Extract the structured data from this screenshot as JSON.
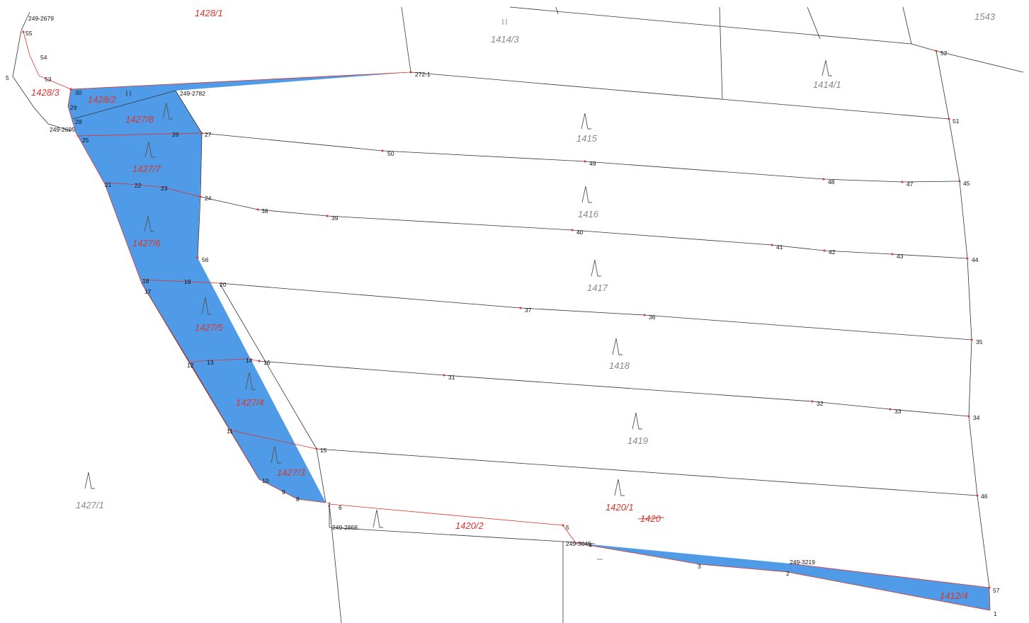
{
  "colors": {
    "highlight_fill": "#4f9be8",
    "boundary_red": "#e0312a",
    "parcel_label_red": "#d8362e",
    "parcel_label_gray": "#8a8a8a",
    "black_line": "#333333",
    "point_marker": "#e0312a"
  },
  "icons": {
    "land_use_symbol": "arable-land-icon",
    "building_symbol": "building-icon"
  },
  "parcels": [
    {
      "id": "p-1428-1",
      "label": "1428/1",
      "color": "red"
    },
    {
      "id": "p-1414-3",
      "label": "1414/3",
      "color": "gray"
    },
    {
      "id": "p-1543",
      "label": "1543",
      "color": "gray"
    },
    {
      "id": "p-1414-1",
      "label": "1414/1",
      "color": "gray"
    },
    {
      "id": "p-1428-3",
      "label": "1428/3",
      "color": "red"
    },
    {
      "id": "p-1428-2",
      "label": "1428/2",
      "color": "red"
    },
    {
      "id": "p-1427-8",
      "label": "1427/8",
      "color": "red"
    },
    {
      "id": "p-1415",
      "label": "1415",
      "color": "gray"
    },
    {
      "id": "p-1427-7",
      "label": "1427/7",
      "color": "red"
    },
    {
      "id": "p-1416",
      "label": "1416",
      "color": "gray"
    },
    {
      "id": "p-1427-6",
      "label": "1427/6",
      "color": "red"
    },
    {
      "id": "p-1417",
      "label": "1417",
      "color": "gray"
    },
    {
      "id": "p-1427-5",
      "label": "1427/5",
      "color": "red"
    },
    {
      "id": "p-1418",
      "label": "1418",
      "color": "gray"
    },
    {
      "id": "p-1427-4",
      "label": "1427/4",
      "color": "red"
    },
    {
      "id": "p-1419",
      "label": "1419",
      "color": "gray"
    },
    {
      "id": "p-1427-3",
      "label": "1427/3",
      "color": "red"
    },
    {
      "id": "p-1427-1",
      "label": "1427/1",
      "color": "gray"
    },
    {
      "id": "p-1420-1",
      "label": "1420/1",
      "color": "red"
    },
    {
      "id": "p-1420",
      "label": "1420",
      "color": "red",
      "struck": true
    },
    {
      "id": "p-1420-2",
      "label": "1420/2",
      "color": "red"
    },
    {
      "id": "p-1412-4",
      "label": "1412/4",
      "color": "red"
    }
  ],
  "points": [
    {
      "id": "pt-249-2679",
      "label": "249-2679"
    },
    {
      "id": "pt-55",
      "label": "55"
    },
    {
      "id": "pt-54",
      "label": "54"
    },
    {
      "id": "pt-5w",
      "label": "5"
    },
    {
      "id": "pt-53",
      "label": "53"
    },
    {
      "id": "pt-30",
      "label": "30"
    },
    {
      "id": "pt-29",
      "label": "29"
    },
    {
      "id": "pt-28",
      "label": "28"
    },
    {
      "id": "pt-249-2695",
      "label": "249-2695"
    },
    {
      "id": "pt-25",
      "label": "25"
    },
    {
      "id": "pt-249-2782",
      "label": "249-2782"
    },
    {
      "id": "pt-272-1",
      "label": "272-1"
    },
    {
      "id": "pt-26",
      "label": "26"
    },
    {
      "id": "pt-27",
      "label": "27"
    },
    {
      "id": "pt-50",
      "label": "50"
    },
    {
      "id": "pt-49",
      "label": "49"
    },
    {
      "id": "pt-48",
      "label": "48"
    },
    {
      "id": "pt-47",
      "label": "47"
    },
    {
      "id": "pt-45",
      "label": "45"
    },
    {
      "id": "pt-52",
      "label": "52"
    },
    {
      "id": "pt-51",
      "label": "51"
    },
    {
      "id": "pt-21",
      "label": "21"
    },
    {
      "id": "pt-22",
      "label": "22"
    },
    {
      "id": "pt-23",
      "label": "23"
    },
    {
      "id": "pt-24",
      "label": "24"
    },
    {
      "id": "pt-38",
      "label": "38"
    },
    {
      "id": "pt-39",
      "label": "39"
    },
    {
      "id": "pt-40",
      "label": "40"
    },
    {
      "id": "pt-41",
      "label": "41"
    },
    {
      "id": "pt-42",
      "label": "42"
    },
    {
      "id": "pt-43",
      "label": "43"
    },
    {
      "id": "pt-44",
      "label": "44"
    },
    {
      "id": "pt-56",
      "label": "56"
    },
    {
      "id": "pt-18",
      "label": "18"
    },
    {
      "id": "pt-17",
      "label": "17"
    },
    {
      "id": "pt-19",
      "label": "19"
    },
    {
      "id": "pt-20",
      "label": "20"
    },
    {
      "id": "pt-37",
      "label": "37"
    },
    {
      "id": "pt-36",
      "label": "36"
    },
    {
      "id": "pt-35",
      "label": "35"
    },
    {
      "id": "pt-12",
      "label": "12"
    },
    {
      "id": "pt-13",
      "label": "13"
    },
    {
      "id": "pt-14",
      "label": "14"
    },
    {
      "id": "pt-16",
      "label": "16"
    },
    {
      "id": "pt-31",
      "label": "31"
    },
    {
      "id": "pt-32",
      "label": "32"
    },
    {
      "id": "pt-33",
      "label": "33"
    },
    {
      "id": "pt-34",
      "label": "34"
    },
    {
      "id": "pt-11",
      "label": "11"
    },
    {
      "id": "pt-15",
      "label": "15"
    },
    {
      "id": "pt-10",
      "label": "10"
    },
    {
      "id": "pt-9",
      "label": "9"
    },
    {
      "id": "pt-8",
      "label": "8"
    },
    {
      "id": "pt-7",
      "label": "7"
    },
    {
      "id": "pt-6",
      "label": "6"
    },
    {
      "id": "pt-46",
      "label": "46"
    },
    {
      "id": "pt-249-2868",
      "label": "249-2868"
    },
    {
      "id": "pt-5",
      "label": "5"
    },
    {
      "id": "pt-249-3045",
      "label": "249-3045"
    },
    {
      "id": "pt-4",
      "label": "4"
    },
    {
      "id": "pt-3",
      "label": "3"
    },
    {
      "id": "pt-249-3219",
      "label": "249-3219"
    },
    {
      "id": "pt-2",
      "label": "2"
    },
    {
      "id": "pt-57",
      "label": "57"
    },
    {
      "id": "pt-1",
      "label": "1"
    }
  ]
}
